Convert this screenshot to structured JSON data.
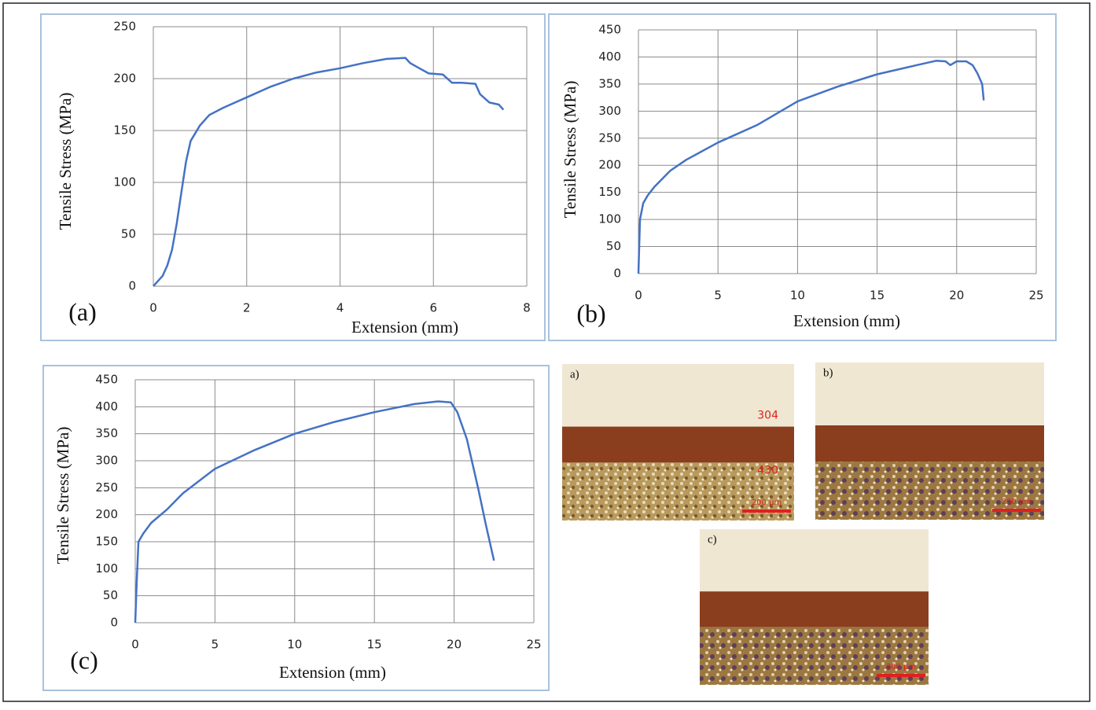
{
  "chart_data": [
    {
      "type": "line",
      "panel_label": "(a)",
      "x_label": "Extension  (mm)",
      "y_label": "Tensile  Stress (MPa)",
      "color": "#4472c4",
      "grid": true,
      "xlim": [
        0,
        8
      ],
      "xticks": [
        0,
        2,
        4,
        6,
        8
      ],
      "ylim": [
        0,
        250
      ],
      "yticks": [
        0,
        50,
        100,
        150,
        200,
        250
      ],
      "x": [
        0,
        0.1,
        0.2,
        0.3,
        0.4,
        0.5,
        0.6,
        0.7,
        0.8,
        1.0,
        1.2,
        1.5,
        2,
        2.5,
        3,
        3.5,
        4,
        4.5,
        5,
        5.4,
        5.5,
        5.7,
        5.9,
        6.2,
        6.4,
        6.6,
        6.9,
        7.0,
        7.2,
        7.4,
        7.5
      ],
      "values": [
        0,
        5,
        10,
        20,
        35,
        60,
        90,
        120,
        140,
        155,
        165,
        172,
        182,
        192,
        200,
        206,
        210,
        215,
        219,
        220,
        215,
        210,
        205,
        204,
        196,
        196,
        195,
        185,
        177,
        175,
        170
      ]
    },
    {
      "type": "line",
      "panel_label": "(b)",
      "x_label": "Extension  (mm)",
      "y_label": "Tensile  Stress  (MPa)",
      "color": "#4472c4",
      "grid": true,
      "xlim": [
        0,
        25
      ],
      "xticks": [
        0,
        5,
        10,
        15,
        20,
        25
      ],
      "ylim": [
        0,
        450
      ],
      "yticks": [
        0,
        50,
        100,
        150,
        200,
        250,
        300,
        350,
        400,
        450
      ],
      "x": [
        0,
        0.1,
        0.3,
        0.6,
        1,
        2,
        3,
        5,
        7.5,
        10,
        12.5,
        15,
        17.5,
        18.7,
        19.3,
        19.6,
        20,
        20.6,
        21,
        21.3,
        21.6,
        21.7
      ],
      "values": [
        0,
        100,
        130,
        145,
        160,
        190,
        210,
        242,
        275,
        318,
        345,
        368,
        385,
        393,
        392,
        385,
        392,
        392,
        385,
        370,
        350,
        320
      ]
    },
    {
      "type": "line",
      "panel_label": "(c)",
      "x_label": "Extension  (mm)",
      "y_label": "Tensile  Stress  (MPa)",
      "color": "#4472c4",
      "grid": true,
      "xlim": [
        0,
        25
      ],
      "xticks": [
        0,
        5,
        10,
        15,
        20,
        25
      ],
      "ylim": [
        0,
        450
      ],
      "yticks": [
        0,
        50,
        100,
        150,
        200,
        250,
        300,
        350,
        400,
        450
      ],
      "x": [
        0,
        0.1,
        0.2,
        0.5,
        1,
        2,
        3,
        5,
        7.5,
        10,
        12.5,
        15,
        17.5,
        19,
        19.8,
        20.2,
        20.8,
        21.5,
        22,
        22.5
      ],
      "values": [
        0,
        80,
        150,
        165,
        185,
        210,
        240,
        285,
        320,
        350,
        372,
        390,
        405,
        410,
        408,
        390,
        340,
        250,
        180,
        115
      ]
    }
  ],
  "micrographs": [
    {
      "label": "a)",
      "top_layer": "304",
      "bottom_layer": "430",
      "scale": "200 µm"
    },
    {
      "label": "b)",
      "scale": "200 µm"
    },
    {
      "label": "c)",
      "scale": "200 µm"
    }
  ]
}
